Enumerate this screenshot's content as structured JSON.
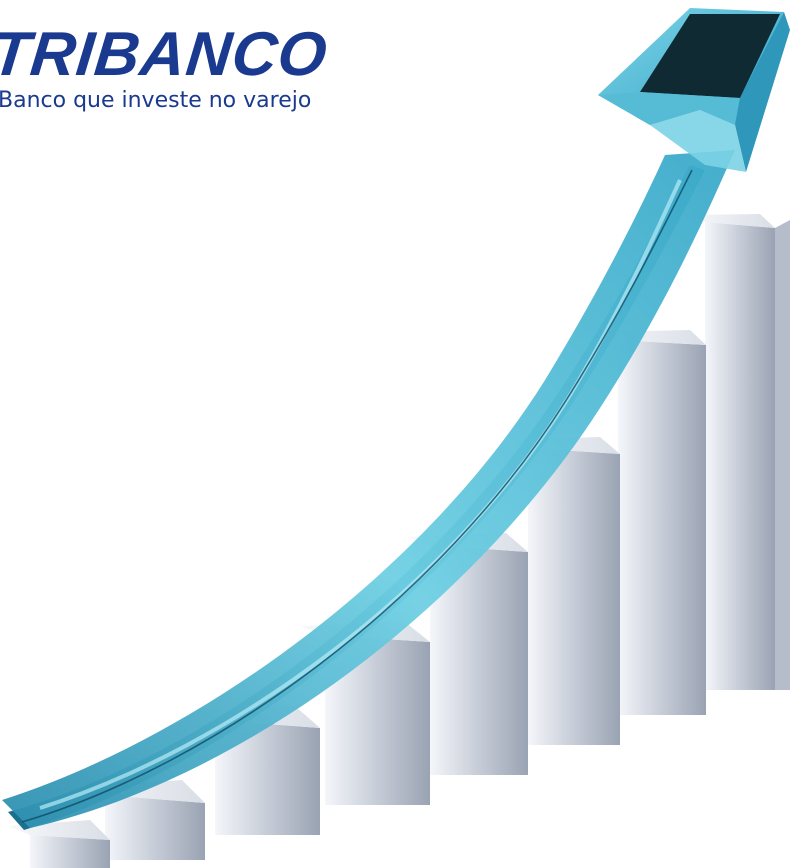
{
  "logo": {
    "title": "TRIBANCO",
    "tagline": "Banco que investe no varejo",
    "color": "#1a3a8f"
  },
  "illustration": {
    "subject": "rising-bars-with-arrow",
    "bar_count": 8,
    "arrow_color": "#4fbfd8",
    "bar_color": "#c9ced8"
  }
}
